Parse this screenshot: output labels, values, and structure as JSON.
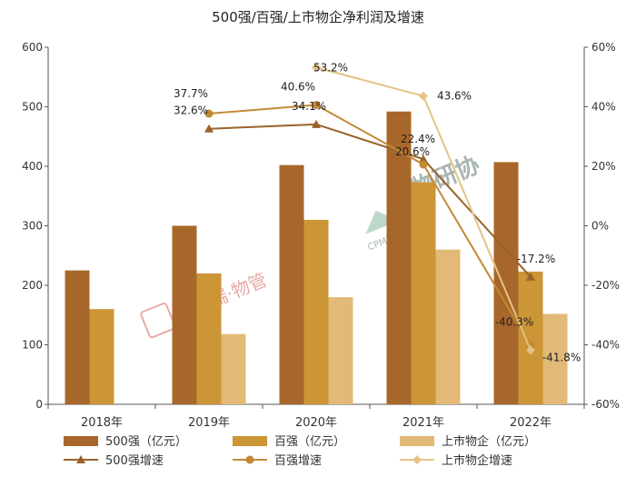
{
  "chart_data": {
    "type": "bar",
    "title": "500强/百强/上市物企净利润及增速",
    "categories": [
      "2018年",
      "2019年",
      "2020年",
      "2021年",
      "2022年"
    ],
    "ylim": [
      0,
      600
    ],
    "yticks": [
      "0",
      "100",
      "200",
      "300",
      "400",
      "500",
      "600"
    ],
    "y2lim": [
      -60,
      60
    ],
    "y2ticks": [
      "-60%",
      "-40%",
      "-20%",
      "0%",
      "20%",
      "40%",
      "60%"
    ],
    "bar_series": [
      {
        "name": "500强（亿元）",
        "color": "#a8672a",
        "values": [
          225,
          300,
          402,
          492,
          407
        ]
      },
      {
        "name": "百强（亿元）",
        "color": "#cc9536",
        "values": [
          160,
          220,
          310,
          373,
          223
        ]
      },
      {
        "name": "上市物企（亿元）",
        "color": "#e2b977",
        "values": [
          null,
          118,
          180,
          260,
          152
        ]
      }
    ],
    "line_series": [
      {
        "name": "500强增速",
        "color": "#99622a",
        "marker": "triangle",
        "values": [
          null,
          32.6,
          34.1,
          22.4,
          -17.2
        ],
        "labels": [
          "",
          "32.6%",
          "34.1%",
          "22.4%",
          "-17.2%"
        ]
      },
      {
        "name": "百强增速",
        "color": "#c28a34",
        "marker": "circle",
        "values": [
          null,
          37.7,
          40.6,
          20.6,
          -40.3
        ],
        "labels": [
          "",
          "37.7%",
          "40.6%",
          "20.6%",
          "-40.3%"
        ]
      },
      {
        "name": "上市物企增速",
        "color": "#e5c385",
        "marker": "diamond",
        "values": [
          null,
          null,
          53.2,
          43.6,
          -41.8
        ],
        "labels": [
          "",
          "",
          "53.2%",
          "43.6%",
          "-41.8%"
        ]
      }
    ]
  },
  "watermarks": {
    "stamp": "克而瑞·物管",
    "logo_cn": "中物研协",
    "logo_en": "CPMRI"
  }
}
